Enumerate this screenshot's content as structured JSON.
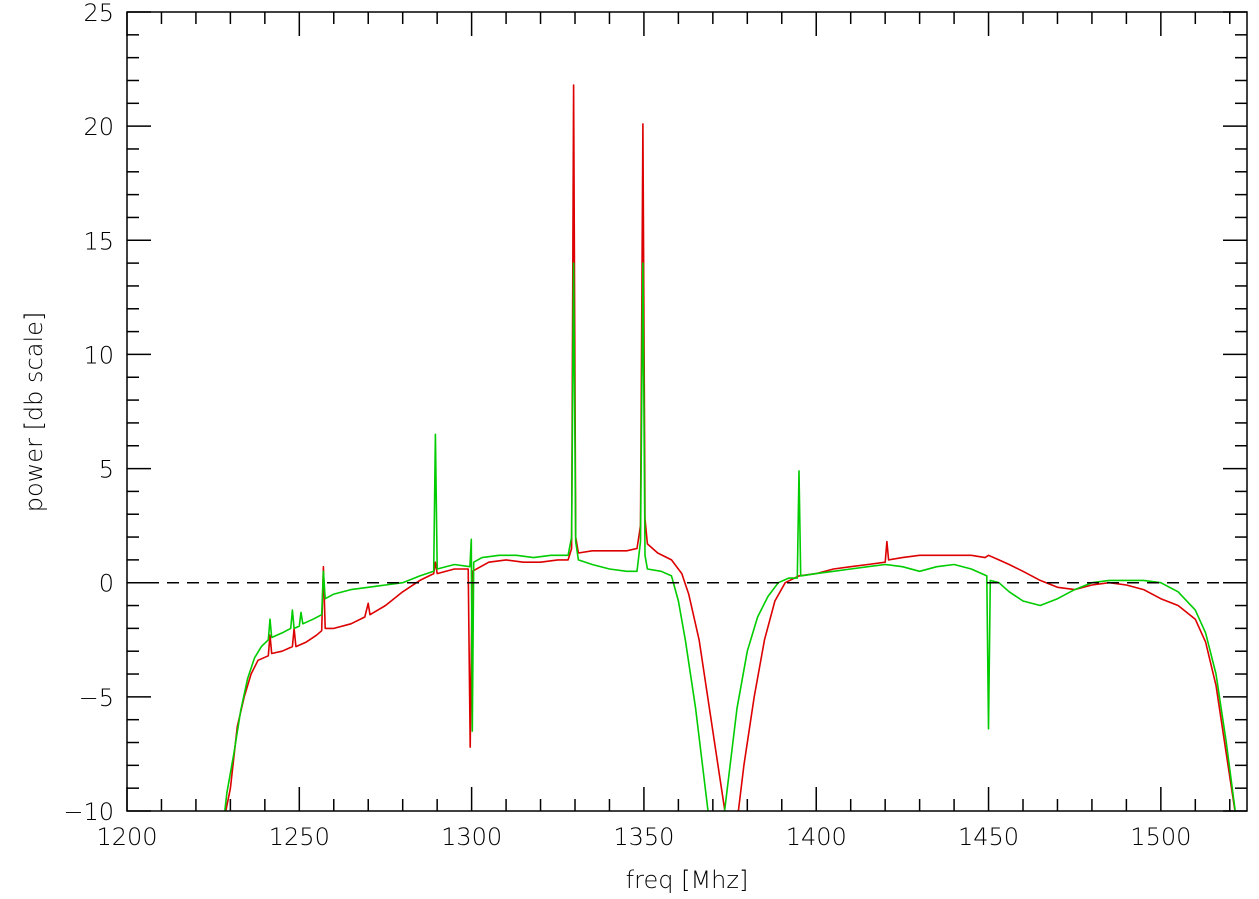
{
  "chart_data": {
    "type": "line",
    "title": "",
    "xlabel": "freq [Mhz]",
    "ylabel": "power [db scale]",
    "xlim": [
      1200,
      1525
    ],
    "ylim": [
      -10,
      25
    ],
    "x_ticks": [
      1200,
      1250,
      1300,
      1350,
      1400,
      1450,
      1500
    ],
    "x_tick_labels": [
      "1200",
      "1250",
      "1300",
      "1350",
      "1400",
      "1450",
      "1500"
    ],
    "y_ticks": [
      -10,
      -5,
      0,
      5,
      10,
      15,
      20,
      25
    ],
    "y_tick_labels": [
      "−10",
      "−5",
      "0",
      "5",
      "10",
      "15",
      "20",
      "25"
    ],
    "grid": false,
    "reference_line": {
      "y": 0,
      "style": "dashed",
      "color": "#000000"
    },
    "series": [
      {
        "color": "#dd0000",
        "points": [
          [
            1228,
            -10.5
          ],
          [
            1230,
            -9
          ],
          [
            1232,
            -6.3
          ],
          [
            1234,
            -5
          ],
          [
            1236,
            -4
          ],
          [
            1238,
            -3.4
          ],
          [
            1241,
            -3.2
          ],
          [
            1241.5,
            -2.3
          ],
          [
            1242,
            -3.1
          ],
          [
            1245,
            -3
          ],
          [
            1248,
            -2.8
          ],
          [
            1248.5,
            -2.0
          ],
          [
            1249,
            -2.8
          ],
          [
            1252,
            -2.6
          ],
          [
            1255,
            -2.3
          ],
          [
            1256.5,
            -2.1
          ],
          [
            1257,
            0.7
          ],
          [
            1257.5,
            -2.0
          ],
          [
            1260,
            -2
          ],
          [
            1265,
            -1.8
          ],
          [
            1269,
            -1.5
          ],
          [
            1270,
            -0.9
          ],
          [
            1270.5,
            -1.4
          ],
          [
            1275,
            -1.0
          ],
          [
            1280,
            -0.4
          ],
          [
            1285,
            0.1
          ],
          [
            1289,
            0.4
          ],
          [
            1289.5,
            0.9
          ],
          [
            1290,
            0.4
          ],
          [
            1295,
            0.6
          ],
          [
            1299,
            0.6
          ],
          [
            1299.6,
            -7.2
          ],
          [
            1300.2,
            0.5
          ],
          [
            1305,
            0.9
          ],
          [
            1310,
            1.0
          ],
          [
            1315,
            0.9
          ],
          [
            1320,
            0.9
          ],
          [
            1325,
            1.0
          ],
          [
            1328,
            1.0
          ],
          [
            1329,
            1.5
          ],
          [
            1329.6,
            21.8
          ],
          [
            1330.2,
            2.0
          ],
          [
            1331,
            1.3
          ],
          [
            1335,
            1.4
          ],
          [
            1340,
            1.4
          ],
          [
            1345,
            1.4
          ],
          [
            1348,
            1.5
          ],
          [
            1349,
            2.5
          ],
          [
            1349.7,
            20.1
          ],
          [
            1350.3,
            2.8
          ],
          [
            1351,
            1.7
          ],
          [
            1354,
            1.3
          ],
          [
            1358,
            1.0
          ],
          [
            1361,
            0.4
          ],
          [
            1363,
            -0.5
          ],
          [
            1366,
            -2.5
          ],
          [
            1369,
            -5.5
          ],
          [
            1372,
            -8.5
          ],
          [
            1374,
            -10.5
          ],
          [
            1377,
            -10.5
          ],
          [
            1379,
            -8
          ],
          [
            1382,
            -5
          ],
          [
            1385,
            -2.5
          ],
          [
            1388,
            -0.8
          ],
          [
            1391,
            0
          ],
          [
            1395,
            0.3
          ],
          [
            1400,
            0.4
          ],
          [
            1405,
            0.6
          ],
          [
            1410,
            0.7
          ],
          [
            1415,
            0.8
          ],
          [
            1420,
            0.9
          ],
          [
            1420.5,
            1.8
          ],
          [
            1421,
            1.0
          ],
          [
            1425,
            1.1
          ],
          [
            1430,
            1.2
          ],
          [
            1435,
            1.2
          ],
          [
            1440,
            1.2
          ],
          [
            1445,
            1.2
          ],
          [
            1449,
            1.1
          ],
          [
            1450,
            1.2
          ],
          [
            1453,
            1.0
          ],
          [
            1456,
            0.8
          ],
          [
            1460,
            0.5
          ],
          [
            1465,
            0.1
          ],
          [
            1470,
            -0.2
          ],
          [
            1475,
            -0.3
          ],
          [
            1480,
            -0.1
          ],
          [
            1485,
            0
          ],
          [
            1490,
            -0.1
          ],
          [
            1495,
            -0.3
          ],
          [
            1500,
            -0.7
          ],
          [
            1505,
            -1.0
          ],
          [
            1510,
            -1.6
          ],
          [
            1513,
            -2.6
          ],
          [
            1516,
            -4.5
          ],
          [
            1519,
            -7.5
          ],
          [
            1522,
            -10.5
          ]
        ]
      },
      {
        "color": "#00cc00",
        "points": [
          [
            1228,
            -10.5
          ],
          [
            1229,
            -9.2
          ],
          [
            1231,
            -7.5
          ],
          [
            1233,
            -5.6
          ],
          [
            1235,
            -4.2
          ],
          [
            1237,
            -3.3
          ],
          [
            1239,
            -2.8
          ],
          [
            1241,
            -2.5
          ],
          [
            1241.5,
            -1.6
          ],
          [
            1242,
            -2.4
          ],
          [
            1245,
            -2.2
          ],
          [
            1247.5,
            -2.0
          ],
          [
            1248,
            -1.2
          ],
          [
            1248.5,
            -2.0
          ],
          [
            1250,
            -1.9
          ],
          [
            1250.5,
            -1.3
          ],
          [
            1251,
            -1.8
          ],
          [
            1254,
            -1.6
          ],
          [
            1256.5,
            -1.4
          ],
          [
            1257,
            0.5
          ],
          [
            1257.5,
            -0.7
          ],
          [
            1260,
            -0.5
          ],
          [
            1265,
            -0.3
          ],
          [
            1270,
            -0.2
          ],
          [
            1275,
            -0.1
          ],
          [
            1280,
            0
          ],
          [
            1285,
            0.3
          ],
          [
            1289,
            0.5
          ],
          [
            1289.5,
            6.5
          ],
          [
            1290,
            0.6
          ],
          [
            1295,
            0.8
          ],
          [
            1299.5,
            0.7
          ],
          [
            1299.9,
            1.9
          ],
          [
            1300.2,
            -6.5
          ],
          [
            1300.6,
            0.9
          ],
          [
            1303,
            1.1
          ],
          [
            1308,
            1.2
          ],
          [
            1313,
            1.2
          ],
          [
            1318,
            1.1
          ],
          [
            1323,
            1.2
          ],
          [
            1328,
            1.2
          ],
          [
            1329,
            2.0
          ],
          [
            1329.6,
            14.0
          ],
          [
            1330.2,
            1.8
          ],
          [
            1331,
            1.0
          ],
          [
            1335,
            0.8
          ],
          [
            1340,
            0.6
          ],
          [
            1345,
            0.5
          ],
          [
            1348,
            0.5
          ],
          [
            1349,
            1.8
          ],
          [
            1349.7,
            14.0
          ],
          [
            1350.3,
            1.2
          ],
          [
            1351,
            0.6
          ],
          [
            1355,
            0.5
          ],
          [
            1358,
            0.3
          ],
          [
            1360,
            -0.8
          ],
          [
            1362,
            -2.5
          ],
          [
            1365,
            -5.5
          ],
          [
            1367,
            -8
          ],
          [
            1369,
            -10.5
          ],
          [
            1373,
            -10.5
          ],
          [
            1375,
            -8
          ],
          [
            1377,
            -5.5
          ],
          [
            1380,
            -3
          ],
          [
            1383,
            -1.5
          ],
          [
            1386,
            -0.6
          ],
          [
            1389,
            0
          ],
          [
            1392,
            0.2
          ],
          [
            1394.5,
            0.2
          ],
          [
            1395,
            4.9
          ],
          [
            1395.5,
            0.3
          ],
          [
            1400,
            0.4
          ],
          [
            1405,
            0.5
          ],
          [
            1410,
            0.6
          ],
          [
            1415,
            0.7
          ],
          [
            1420,
            0.8
          ],
          [
            1425,
            0.7
          ],
          [
            1430,
            0.5
          ],
          [
            1435,
            0.7
          ],
          [
            1440,
            0.8
          ],
          [
            1445,
            0.6
          ],
          [
            1449.5,
            0.3
          ],
          [
            1450,
            -6.4
          ],
          [
            1450.5,
            0.1
          ],
          [
            1453,
            0
          ],
          [
            1456,
            -0.4
          ],
          [
            1460,
            -0.8
          ],
          [
            1465,
            -1
          ],
          [
            1470,
            -0.7
          ],
          [
            1475,
            -0.3
          ],
          [
            1480,
            0
          ],
          [
            1485,
            0.1
          ],
          [
            1490,
            0.1
          ],
          [
            1495,
            0.1
          ],
          [
            1500,
            0
          ],
          [
            1505,
            -0.4
          ],
          [
            1510,
            -1.2
          ],
          [
            1513,
            -2.2
          ],
          [
            1516,
            -4.0
          ],
          [
            1519,
            -7.0
          ],
          [
            1522,
            -10.5
          ]
        ]
      }
    ]
  }
}
